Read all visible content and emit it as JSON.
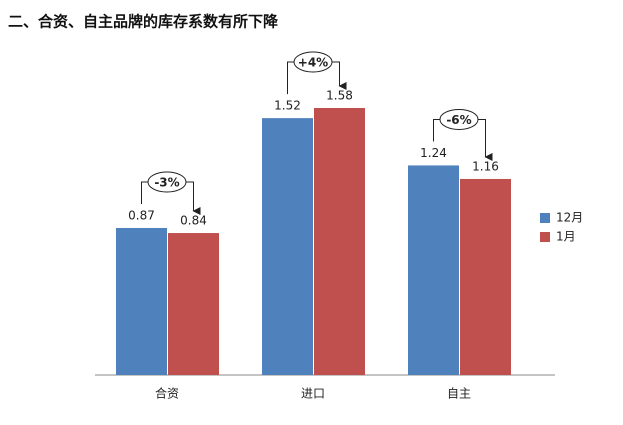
{
  "chart_data": {
    "type": "bar",
    "title": "二、合资、自主品牌的库存系数有所下降",
    "categories": [
      "合资",
      "进口",
      "自主"
    ],
    "series": [
      {
        "name": "12月",
        "color": "#4f81bd",
        "values": [
          0.87,
          1.52,
          1.24
        ]
      },
      {
        "name": "1月",
        "color": "#c0504d",
        "values": [
          0.84,
          1.58,
          1.16
        ]
      }
    ],
    "annotations": [
      "-3%",
      "+4%",
      "-6%"
    ],
    "legend": "right"
  }
}
